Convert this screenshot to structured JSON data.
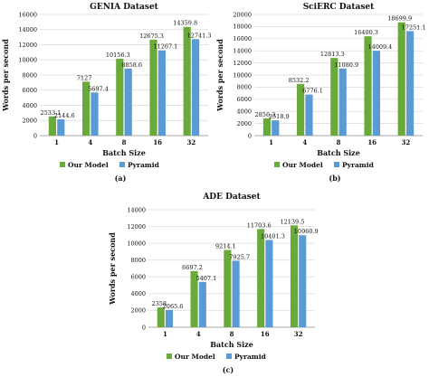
{
  "colors": {
    "our_model": "#6aaa3a",
    "pyramid": "#5b9bd5",
    "grid": "#d9d9d9"
  },
  "chart_data": [
    {
      "type": "bar",
      "title": "GENIA Dataset",
      "xlabel": "Batch Size",
      "ylabel": "Words per second",
      "categories": [
        "1",
        "4",
        "8",
        "16",
        "32"
      ],
      "ylim": [
        0,
        16000
      ],
      "yticks": [
        0,
        2000,
        4000,
        6000,
        8000,
        10000,
        12000,
        14000,
        16000
      ],
      "grid": true,
      "legend": "bottom",
      "caption": "(a)",
      "series": [
        {
          "name": "Our Model",
          "values": [
            2533.1,
            7127,
            10156.3,
            12675.3,
            14359.8
          ],
          "labels": [
            "2533.1",
            "7127",
            "10156.3",
            "12675.3",
            "14359.8"
          ]
        },
        {
          "name": "Pyramid",
          "values": [
            2144.6,
            5697.4,
            8858.6,
            11267.1,
            12741.3
          ],
          "labels": [
            "2144.6",
            "5697.4",
            "8858.6",
            "11267.1",
            "12741.3"
          ]
        }
      ]
    },
    {
      "type": "bar",
      "title": "SciERC Dataset",
      "xlabel": "Batch Size",
      "ylabel": "Words per second",
      "categories": [
        "1",
        "4",
        "8",
        "16",
        "32"
      ],
      "ylim": [
        0,
        20000
      ],
      "yticks": [
        0,
        2000,
        4000,
        6000,
        8000,
        10000,
        12000,
        14000,
        16000,
        18000,
        20000
      ],
      "grid": true,
      "legend": "bottom",
      "caption": "(b)",
      "series": [
        {
          "name": "Our Model",
          "values": [
            2856.3,
            8532.2,
            12813.3,
            16400.3,
            18699.9
          ],
          "labels": [
            "2856.3",
            "8532.2",
            "12813.3",
            "16400.3",
            "18699.9"
          ]
        },
        {
          "name": "Pyramid",
          "values": [
            2518.9,
            6776.1,
            11080.9,
            14009.4,
            17251.1
          ],
          "labels": [
            "2518.9",
            "6776.1",
            "11080.9",
            "14009.4",
            "17251.1"
          ]
        }
      ]
    },
    {
      "type": "bar",
      "title": "ADE Dataset",
      "xlabel": "Batch Size",
      "ylabel": "Words per second",
      "categories": [
        "1",
        "4",
        "8",
        "16",
        "32"
      ],
      "ylim": [
        0,
        14000
      ],
      "yticks": [
        0,
        2000,
        4000,
        6000,
        8000,
        10000,
        12000,
        14000
      ],
      "grid": true,
      "legend": "bottom",
      "caption": "(c)",
      "series": [
        {
          "name": "Our Model",
          "values": [
            2358,
            6697.2,
            9214.1,
            11703.6,
            12139.5
          ],
          "labels": [
            "2358",
            "6697.2",
            "9214.1",
            "11703.6",
            "12139.5"
          ]
        },
        {
          "name": "Pyramid",
          "values": [
            2065.6,
            5407.1,
            7925.7,
            10401.3,
            10960.9
          ],
          "labels": [
            "2065.6",
            "5407.1",
            "7925.7",
            "10401.3",
            "10960.9"
          ]
        }
      ]
    }
  ]
}
